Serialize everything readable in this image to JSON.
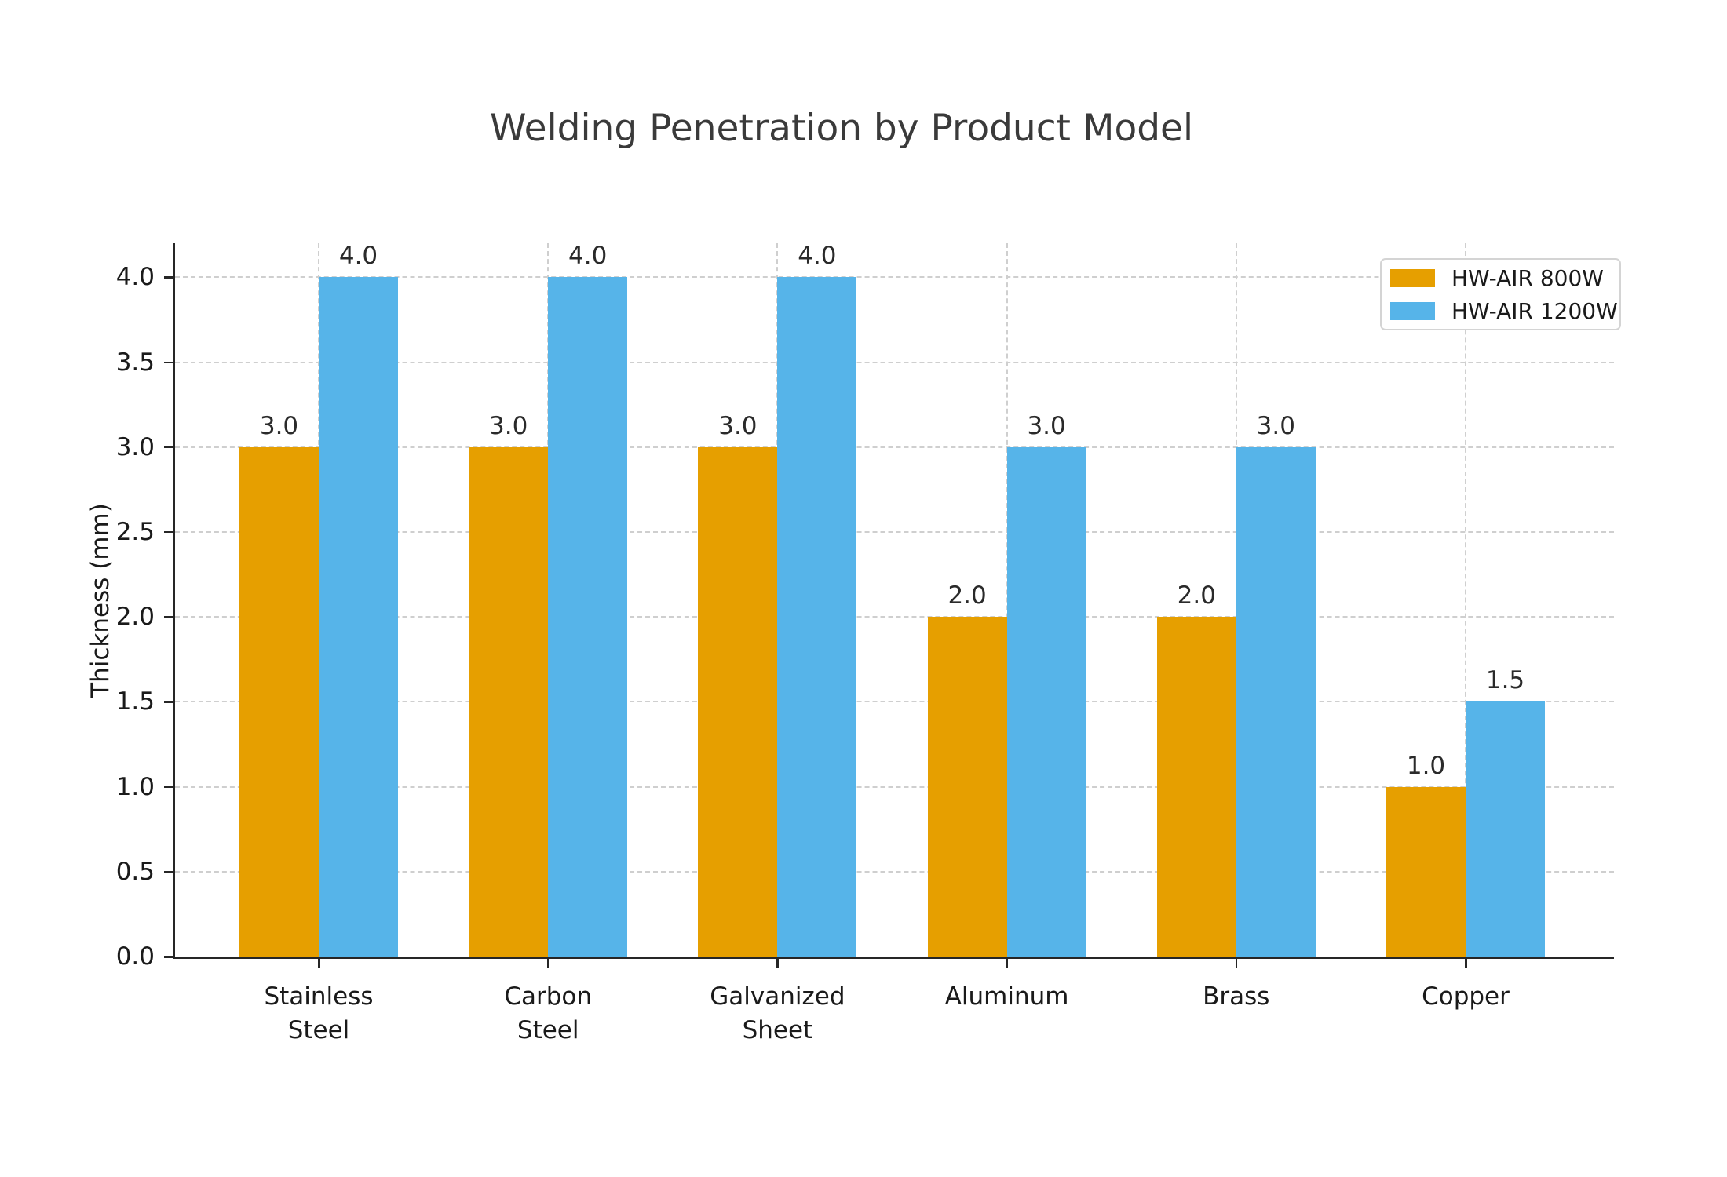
{
  "chart_data": {
    "type": "bar",
    "title": "Welding Penetration by Product Model",
    "ylabel": "Thickness (mm)",
    "xlabel": "",
    "categories": [
      "Stainless\nSteel",
      "Carbon\nSteel",
      "Galvanized\nSheet",
      "Aluminum",
      "Brass",
      "Copper"
    ],
    "series": [
      {
        "name": "HW-AIR 800W",
        "color": "#E69F00",
        "values": [
          3.0,
          3.0,
          3.0,
          2.0,
          2.0,
          1.0
        ]
      },
      {
        "name": "HW-AIR 1200W",
        "color": "#56B4E9",
        "values": [
          4.0,
          4.0,
          4.0,
          3.0,
          3.0,
          1.5
        ]
      }
    ],
    "yticks": [
      0.0,
      0.5,
      1.0,
      1.5,
      2.0,
      2.5,
      3.0,
      3.5,
      4.0
    ],
    "ylim": [
      0,
      4.2
    ],
    "grid": true,
    "grid_style": "dashed",
    "legend_position": "upper right",
    "bar_value_labels": true,
    "value_label_format": ".1f",
    "colors": {
      "text": "#1a1a1a",
      "title": "#3a3a3a",
      "grid": "#cfcfcf",
      "spine": "#262626",
      "background": "#ffffff"
    }
  }
}
